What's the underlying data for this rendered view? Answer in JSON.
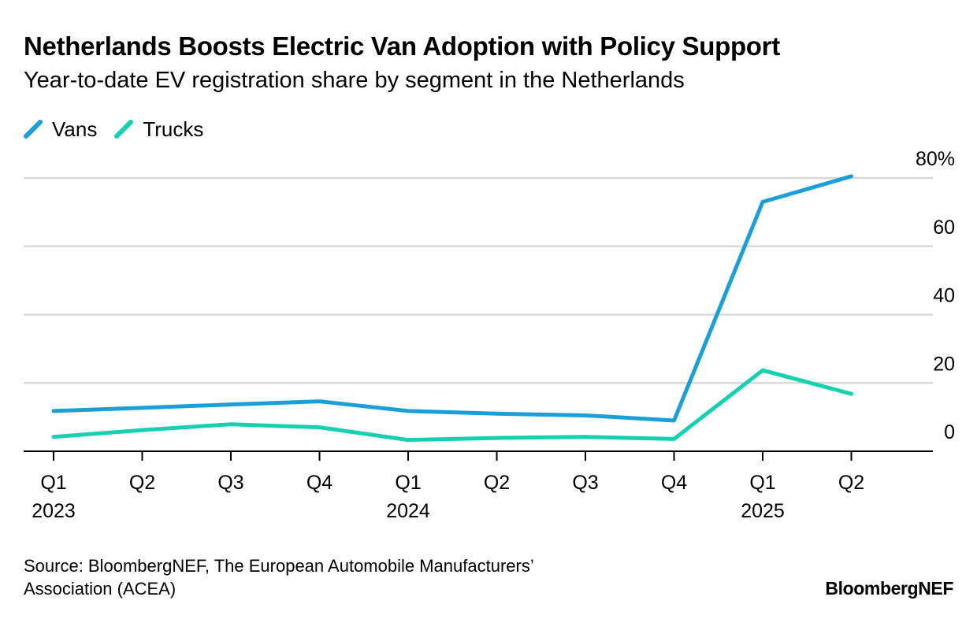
{
  "title": "Netherlands Boosts Electric Van Adoption with Policy Support",
  "subtitle": "Year-to-date EV registration share by segment in the Netherlands",
  "source_line1": "Source: BloombergNEF, The European Automobile Manufacturers’",
  "source_line2": "Association (ACEA)",
  "brand": "BloombergNEF",
  "colors": {
    "vans": "#1a9fd9",
    "trucks": "#15d1b1",
    "grid": "#d9d9d9",
    "axis": "#000000"
  },
  "chart_data": {
    "type": "line",
    "title": "Netherlands Boosts Electric Van Adoption with Policy Support",
    "subtitle": "Year-to-date EV registration share by segment in the Netherlands",
    "x": [
      "Q1 2023",
      "Q2 2023",
      "Q3 2023",
      "Q4 2023",
      "Q1 2024",
      "Q2 2024",
      "Q3 2024",
      "Q4 2024",
      "Q1 2025",
      "Q2 2025"
    ],
    "x_tick_labels": [
      "Q1",
      "Q2",
      "Q3",
      "Q4",
      "Q1",
      "Q2",
      "Q3",
      "Q4",
      "Q1",
      "Q2"
    ],
    "x_year_labels": [
      {
        "index": 0,
        "label": "2023"
      },
      {
        "index": 4,
        "label": "2024"
      },
      {
        "index": 8,
        "label": "2025"
      }
    ],
    "series": [
      {
        "name": "Vans",
        "color": "#1a9fd9",
        "values": [
          11.8,
          12.7,
          13.7,
          14.6,
          11.8,
          11.0,
          10.5,
          9.0,
          73.0,
          80.5
        ]
      },
      {
        "name": "Trucks",
        "color": "#15d1b1",
        "values": [
          4.2,
          6.2,
          7.9,
          7.0,
          3.3,
          3.9,
          4.2,
          3.6,
          23.7,
          16.8
        ]
      }
    ],
    "ylim": [
      0,
      80
    ],
    "y_ticks": [
      0,
      20,
      40,
      60,
      80
    ],
    "y_tick_labels": [
      "0",
      "20",
      "40",
      "60",
      "80%"
    ],
    "y_axis_side": "right",
    "grid": true,
    "legend": "top-left",
    "xlabel": "",
    "ylabel": ""
  }
}
